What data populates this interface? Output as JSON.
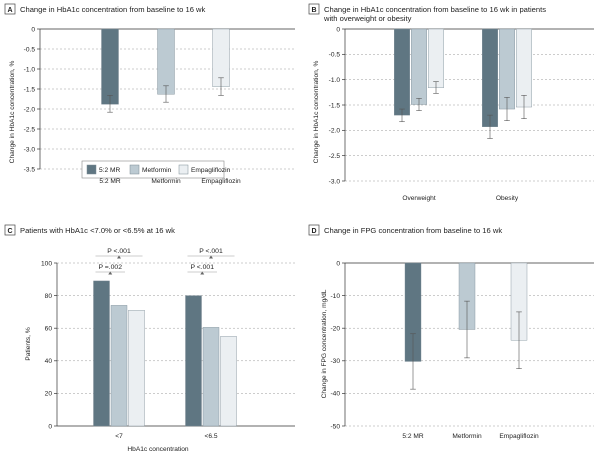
{
  "colors": {
    "s52mr": "#5f7682",
    "metformin": "#bccad2",
    "empagliflozin": "#ebeff2"
  },
  "legend": {
    "items": [
      "5:2 MR",
      "Metformin",
      "Empagliflozin"
    ]
  },
  "chart_data": [
    {
      "panel": "A",
      "type": "bar",
      "title": "Change in HbA1c concentration from baseline to 16 wk",
      "ylabel": "Change in HbA1c concentration, %",
      "ylim": [
        -3.5,
        0
      ],
      "yticks": [
        0,
        -0.5,
        -1.0,
        -1.5,
        -2.0,
        -2.5,
        -3.0,
        -3.5
      ],
      "categories": [
        "5:2 MR",
        "Metformin",
        "Empagliflozin"
      ],
      "values": [
        -1.88,
        -1.63,
        -1.44
      ],
      "errors": [
        [
          -2.08,
          -1.66
        ],
        [
          -1.83,
          -1.42
        ],
        [
          -1.66,
          -1.22
        ]
      ]
    },
    {
      "panel": "B",
      "type": "bar",
      "title": "Change in HbA1c concentration from baseline to 16 wk in patients with overweight or obesity",
      "ylabel": "Change in HbA1c concentration, %",
      "ylim": [
        -3.0,
        0
      ],
      "yticks": [
        0,
        -0.5,
        -1.0,
        -1.5,
        -2.0,
        -2.5,
        -3.0
      ],
      "categories": [
        "Overweight",
        "Obesity"
      ],
      "series": [
        {
          "name": "5:2 MR",
          "values": [
            -1.7,
            -1.93
          ],
          "errors": [
            [
              -1.83,
              -1.58
            ],
            [
              -2.16,
              -1.7
            ]
          ]
        },
        {
          "name": "Metformin",
          "values": [
            -1.49,
            -1.58
          ],
          "errors": [
            [
              -1.61,
              -1.37
            ],
            [
              -1.81,
              -1.35
            ]
          ]
        },
        {
          "name": "Empagliflozin",
          "values": [
            -1.16,
            -1.54
          ],
          "errors": [
            [
              -1.27,
              -1.04
            ],
            [
              -1.77,
              -1.31
            ]
          ]
        }
      ]
    },
    {
      "panel": "C",
      "type": "bar",
      "title": "Patients with HbA1c <7.0% or <6.5% at 16 wk",
      "ylabel": "Patients, %",
      "xlabel": "HbA1c concentration",
      "ylim": [
        0,
        100
      ],
      "yticks": [
        0,
        20,
        40,
        60,
        80,
        100
      ],
      "categories": [
        "<7",
        "<6.5"
      ],
      "series": [
        {
          "name": "5:2 MR",
          "values": [
            89,
            80
          ]
        },
        {
          "name": "Metformin",
          "values": [
            74,
            60.5
          ]
        },
        {
          "name": "Empagliflozin",
          "values": [
            71,
            55
          ]
        }
      ],
      "annotations": [
        {
          "group": 0,
          "from": 0,
          "to": 2,
          "text": "P <.001",
          "level": 2
        },
        {
          "group": 0,
          "from": 0,
          "to": 1,
          "text": "P =.002",
          "level": 1
        },
        {
          "group": 1,
          "from": 0,
          "to": 2,
          "text": "P <.001",
          "level": 2
        },
        {
          "group": 1,
          "from": 0,
          "to": 1,
          "text": "P <.001",
          "level": 1
        }
      ]
    },
    {
      "panel": "D",
      "type": "bar",
      "title": "Change in FPG concentration from baseline to 16 wk",
      "ylabel": "Change in FPG concentration, mg/dL",
      "ylim": [
        -50,
        0
      ],
      "yticks": [
        0,
        -10,
        -20,
        -30,
        -40,
        -50
      ],
      "categories": [
        "5:2 MR",
        "Metformin",
        "Empagliflozin"
      ],
      "values": [
        -30.2,
        -20.4,
        -23.7
      ],
      "errors": [
        [
          -38.7,
          -21.7
        ],
        [
          -29.1,
          -11.7
        ],
        [
          -32.4,
          -15.0
        ]
      ]
    }
  ]
}
